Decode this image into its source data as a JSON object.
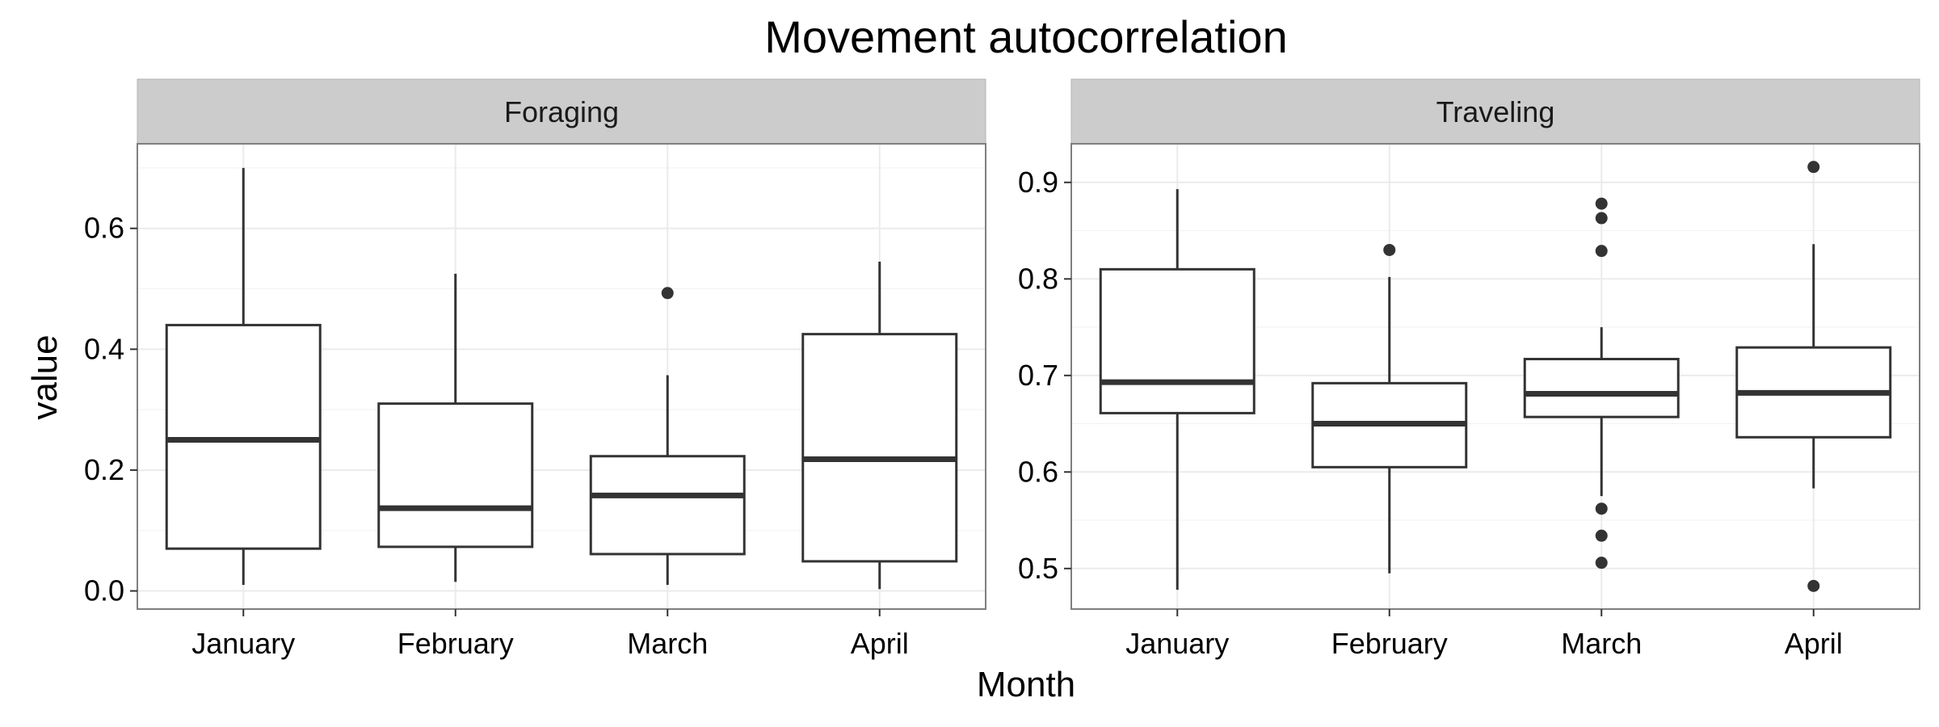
{
  "chart_data": {
    "type": "boxplot",
    "title": "Movement autocorrelation",
    "xlabel": "Month",
    "ylabel": "value",
    "categories": [
      "January",
      "February",
      "March",
      "April"
    ],
    "grid": true,
    "panels": [
      {
        "name": "Foraging",
        "ylim": [
          -0.03,
          0.74
        ],
        "yticks": [
          0.0,
          0.2,
          0.4,
          0.6
        ],
        "ytick_labels": [
          "0.0",
          "0.2",
          "0.4",
          "0.6"
        ],
        "boxes": [
          {
            "category": "January",
            "min": 0.01,
            "q1": 0.07,
            "median": 0.25,
            "q3": 0.44,
            "max": 0.7,
            "outliers": []
          },
          {
            "category": "February",
            "min": 0.015,
            "q1": 0.073,
            "median": 0.137,
            "q3": 0.31,
            "max": 0.525,
            "outliers": []
          },
          {
            "category": "March",
            "min": 0.01,
            "q1": 0.061,
            "median": 0.158,
            "q3": 0.223,
            "max": 0.357,
            "outliers": [
              0.493
            ]
          },
          {
            "category": "April",
            "min": 0.003,
            "q1": 0.049,
            "median": 0.218,
            "q3": 0.425,
            "max": 0.545,
            "outliers": []
          }
        ]
      },
      {
        "name": "Traveling",
        "ylim": [
          0.458,
          0.94
        ],
        "yticks": [
          0.5,
          0.6,
          0.7,
          0.8,
          0.9
        ],
        "ytick_labels": [
          "0.5",
          "0.6",
          "0.7",
          "0.8",
          "0.9"
        ],
        "boxes": [
          {
            "category": "January",
            "min": 0.478,
            "q1": 0.661,
            "median": 0.693,
            "q3": 0.81,
            "max": 0.893,
            "outliers": []
          },
          {
            "category": "February",
            "min": 0.495,
            "q1": 0.605,
            "median": 0.65,
            "q3": 0.692,
            "max": 0.802,
            "outliers": [
              0.83
            ]
          },
          {
            "category": "March",
            "min": 0.575,
            "q1": 0.657,
            "median": 0.681,
            "q3": 0.717,
            "max": 0.75,
            "outliers": [
              0.878,
              0.863,
              0.829,
              0.562,
              0.534,
              0.506
            ]
          },
          {
            "category": "April",
            "min": 0.583,
            "q1": 0.636,
            "median": 0.682,
            "q3": 0.729,
            "max": 0.836,
            "outliers": [
              0.916,
              0.482
            ]
          }
        ]
      }
    ]
  }
}
